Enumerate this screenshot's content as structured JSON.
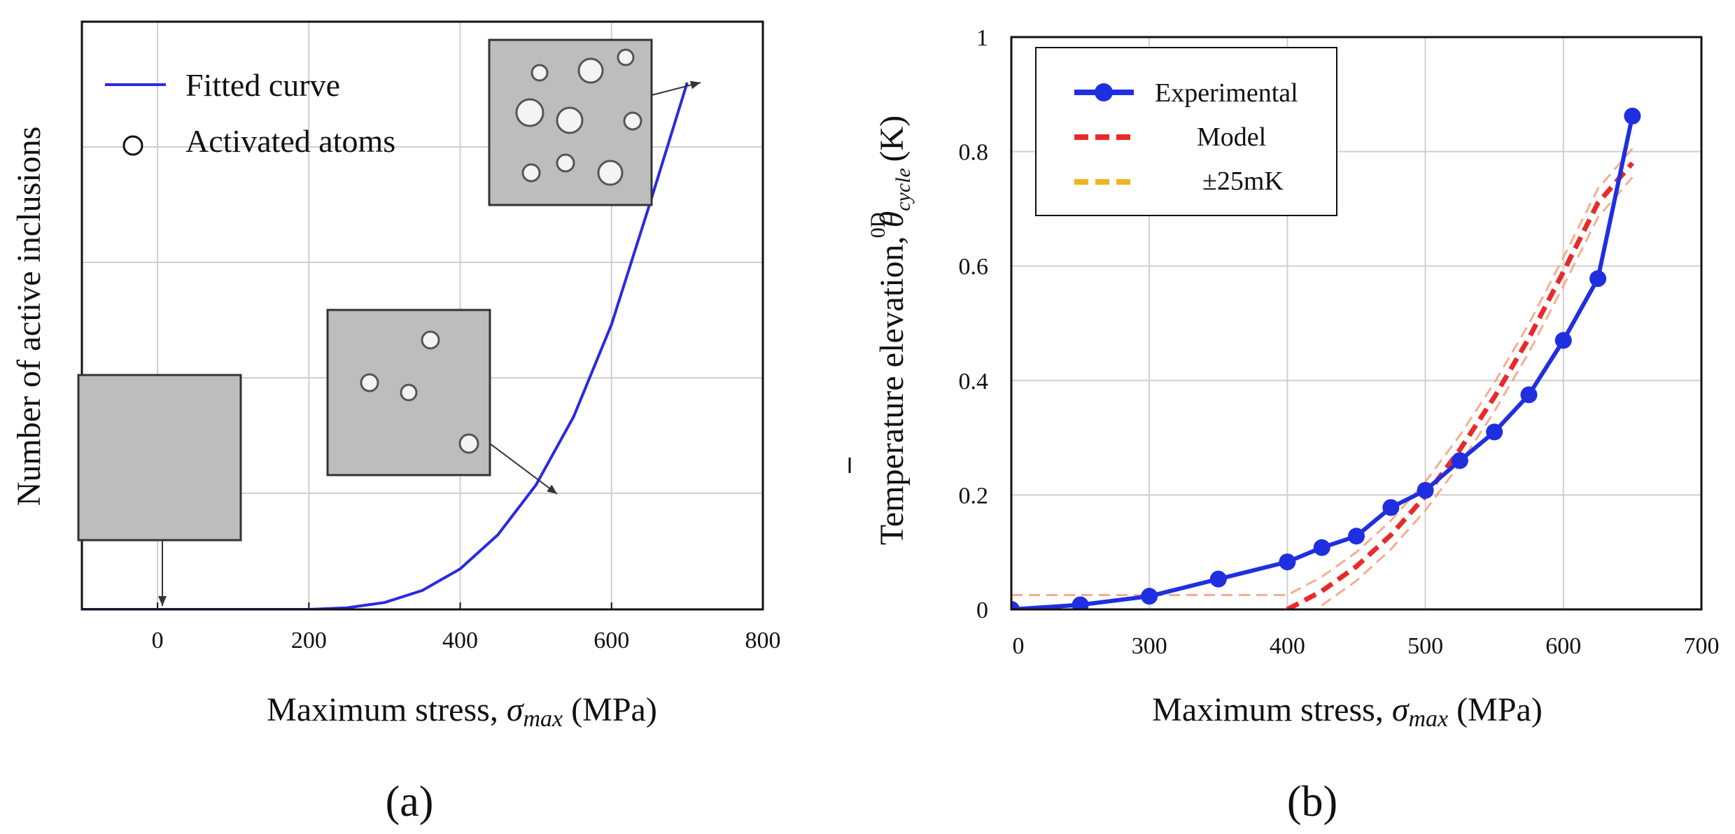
{
  "chart_data": [
    {
      "panel": "(a)",
      "type": "line",
      "title": "",
      "xlabel": "Maximum stress, σmax (MPa)",
      "xlabel_pre": "Maximum stress, ",
      "xlabel_sym": "σ",
      "xlabel_sub": "max",
      "xlabel_post": " (MPa)",
      "ylabel": "Number of active inclusions",
      "xlim": [
        -100,
        800
      ],
      "xticks": [
        0,
        200,
        400,
        600,
        800
      ],
      "yticks_labeled": false,
      "grid": true,
      "legend": {
        "placement": "top-left",
        "entries": [
          "Fitted curve",
          "Activated atoms"
        ]
      },
      "series": [
        {
          "name": "Fitted curve",
          "color": "#2a2ae0",
          "x": [
            -100,
            0,
            100,
            200,
            250,
            300,
            350,
            400,
            450,
            500,
            550,
            600,
            650,
            700
          ],
          "y": [
            0,
            0,
            0,
            0,
            0.003,
            0.013,
            0.036,
            0.077,
            0.142,
            0.236,
            0.366,
            0.541,
            0.767,
            1.0
          ]
        }
      ],
      "insets": [
        {
          "label": "no activated inclusions",
          "anchor_x": 0,
          "anchor_y": 0,
          "circle_count": 0
        },
        {
          "label": "few activated inclusions",
          "anchor_x": 520,
          "anchor_y": 0.22,
          "circle_count": 4
        },
        {
          "label": "many activated inclusions",
          "anchor_x": 700,
          "anchor_y": 1.0,
          "circle_count": 9
        }
      ]
    },
    {
      "panel": "(b)",
      "type": "line",
      "title": "",
      "xlabel": "Maximum stress, σmax (MPa)",
      "xlabel_pre": "Maximum stress, ",
      "xlabel_sym": "σ",
      "xlabel_sub": "max",
      "xlabel_post": " (MPa)",
      "ylabel": "Temperature elevation, θ̄ cycle 0D (K)",
      "ylabel_pre": "Temperature elevation, ",
      "ylabel_sym": "θ",
      "ylabel_sub": "cycle",
      "ylabel_sup": "0D",
      "ylabel_post": " (K)",
      "xlim": [
        200,
        700
      ],
      "ylim": [
        0,
        1
      ],
      "xticks": [
        "0",
        "300",
        "400",
        "500",
        "600",
        "700"
      ],
      "yticks": [
        "0",
        "0.2",
        "0.4",
        "0.6",
        "0.8",
        "1"
      ],
      "grid": true,
      "legend": {
        "placement": "top-left",
        "entries": [
          "Experimental",
          "Model",
          "±25mK"
        ]
      },
      "series": [
        {
          "name": "Experimental",
          "color": "#1f2fe0",
          "x": [
            200,
            250,
            300,
            350,
            400,
            425,
            450,
            475,
            500,
            525,
            550,
            575,
            600,
            625,
            650
          ],
          "y": [
            0.0,
            0.008,
            0.023,
            0.053,
            0.083,
            0.108,
            0.128,
            0.178,
            0.208,
            0.26,
            0.31,
            0.375,
            0.47,
            0.578,
            0.862
          ]
        },
        {
          "name": "Model",
          "color": "#e82a2a",
          "x": [
            400,
            425,
            450,
            475,
            500,
            525,
            550,
            575,
            600,
            625,
            650
          ],
          "y": [
            0.0,
            0.032,
            0.075,
            0.13,
            0.198,
            0.279,
            0.371,
            0.474,
            0.59,
            0.71,
            0.78
          ]
        },
        {
          "name": "±25mK",
          "color": "#f0b41e",
          "x": [
            200,
            300,
            400,
            425,
            450,
            475,
            500,
            525,
            550,
            575,
            600,
            625,
            650
          ],
          "y_upper": [
            0.025,
            0.025,
            0.025,
            0.057,
            0.1,
            0.155,
            0.223,
            0.304,
            0.396,
            0.499,
            0.615,
            0.735,
            0.805
          ],
          "y_lower": [
            -0.025,
            -0.025,
            -0.025,
            0.007,
            0.05,
            0.105,
            0.173,
            0.254,
            0.346,
            0.449,
            0.565,
            0.685,
            0.755
          ]
        }
      ]
    }
  ]
}
